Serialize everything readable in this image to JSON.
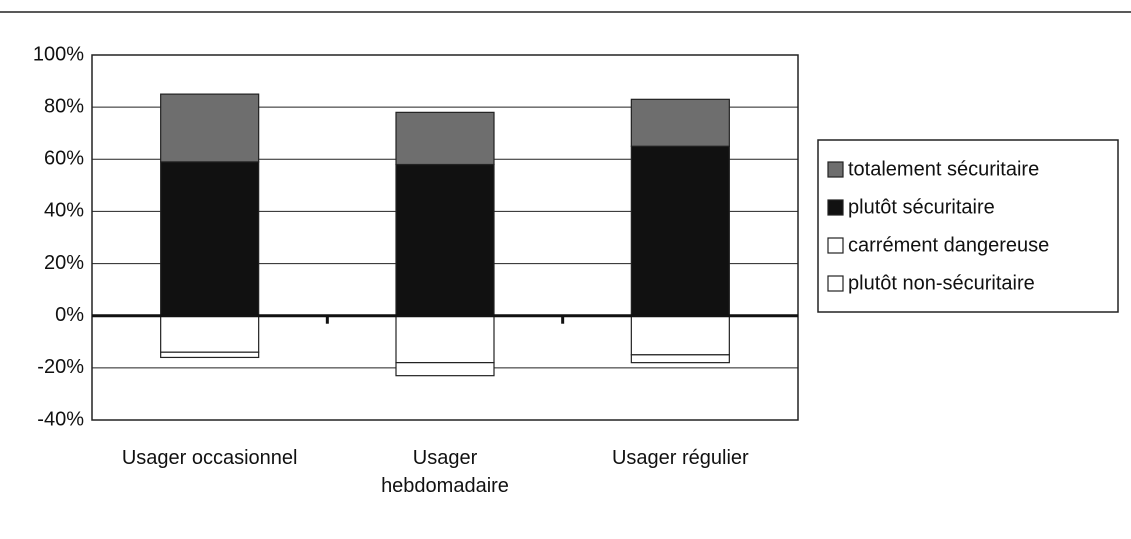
{
  "chart_data": {
    "type": "stacked_bar",
    "categories": [
      "Usager occasionnel",
      "Usager\nhebdomadaire",
      "Usager régulier"
    ],
    "series": [
      {
        "name": "totalement sécuritaire",
        "color": "#6e6e6e",
        "values": [
          26,
          20,
          18
        ]
      },
      {
        "name": "plutôt sécuritaire",
        "color": "#111111",
        "values": [
          59,
          58,
          65
        ]
      },
      {
        "name": "carrément dangereuse",
        "color": "#ffffff",
        "values": [
          -2,
          -5,
          -3
        ]
      },
      {
        "name": "plutôt non-sécuritaire",
        "color": "#ffffff",
        "values": [
          -14,
          -18,
          -15
        ]
      }
    ],
    "ylim": [
      -40,
      100
    ],
    "yticks": [
      {
        "value": -40,
        "label": "-40%"
      },
      {
        "value": -20,
        "label": "-20%"
      },
      {
        "value": 0,
        "label": "0%"
      },
      {
        "value": 20,
        "label": "20%"
      },
      {
        "value": 40,
        "label": "40%"
      },
      {
        "value": 60,
        "label": "60%"
      },
      {
        "value": 80,
        "label": "80%"
      },
      {
        "value": 100,
        "label": "100%"
      }
    ],
    "grid": true,
    "legend": "right"
  }
}
